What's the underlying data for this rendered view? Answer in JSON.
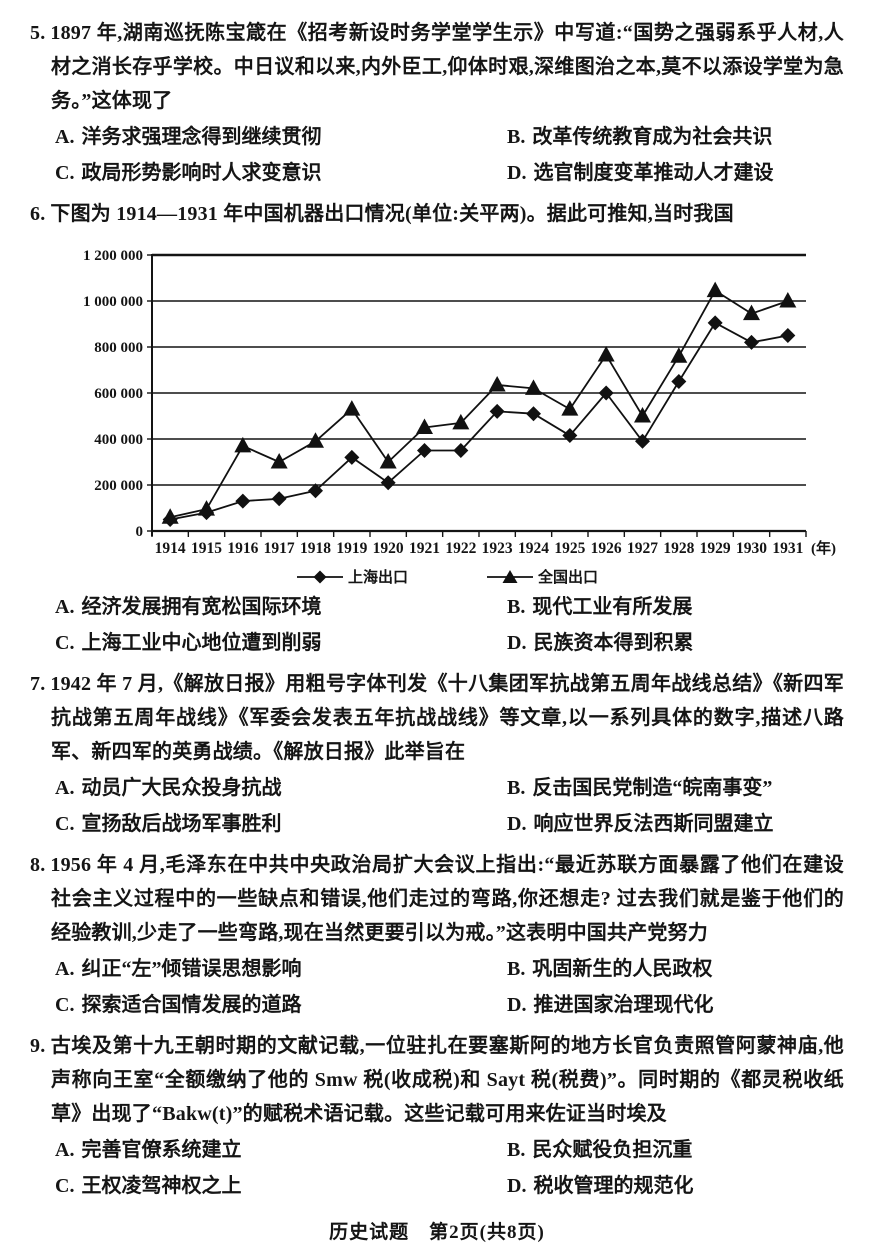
{
  "page": {
    "footer": "历史试题　第2页(共8页)"
  },
  "questions": [
    {
      "number": "5.",
      "stem": "1897 年,湖南巡抚陈宝箴在《招考新设时务学堂学生示》中写道:“国势之强弱系乎人材,人材之消长存乎学校。中日议和以来,内外臣工,仰体时艰,深维图治之本,莫不以添设学堂为急务。”这体现了",
      "options": [
        {
          "label": "A.",
          "text": "洋务求强理念得到继续贯彻"
        },
        {
          "label": "B.",
          "text": "改革传统教育成为社会共识"
        },
        {
          "label": "C.",
          "text": "政局形势影响时人求变意识"
        },
        {
          "label": "D.",
          "text": "选官制度变革推动人才建设"
        }
      ]
    },
    {
      "number": "6.",
      "stem": "下图为 1914—1931 年中国机器出口情况(单位:关平两)。据此可推知,当时我国",
      "has_chart": true,
      "options": [
        {
          "label": "A.",
          "text": "经济发展拥有宽松国际环境"
        },
        {
          "label": "B.",
          "text": "现代工业有所发展"
        },
        {
          "label": "C.",
          "text": "上海工业中心地位遭到削弱"
        },
        {
          "label": "D.",
          "text": "民族资本得到积累"
        }
      ]
    },
    {
      "number": "7.",
      "stem": "1942 年 7 月,《解放日报》用粗号字体刊发《十八集团军抗战第五周年战线总结》《新四军抗战第五周年战线》《军委会发表五年抗战战线》等文章,以一系列具体的数字,描述八路军、新四军的英勇战绩。《解放日报》此举旨在",
      "options": [
        {
          "label": "A.",
          "text": "动员广大民众投身抗战"
        },
        {
          "label": "B.",
          "text": "反击国民党制造“皖南事变”"
        },
        {
          "label": "C.",
          "text": "宣扬敌后战场军事胜利"
        },
        {
          "label": "D.",
          "text": "响应世界反法西斯同盟建立"
        }
      ]
    },
    {
      "number": "8.",
      "stem": "1956 年 4 月,毛泽东在中共中央政治局扩大会议上指出:“最近苏联方面暴露了他们在建设社会主义过程中的一些缺点和错误,他们走过的弯路,你还想走? 过去我们就是鉴于他们的经验教训,少走了一些弯路,现在当然更要引以为戒。”这表明中国共产党努力",
      "options": [
        {
          "label": "A.",
          "text": "纠正“左”倾错误思想影响"
        },
        {
          "label": "B.",
          "text": "巩固新生的人民政权"
        },
        {
          "label": "C.",
          "text": "探索适合国情发展的道路"
        },
        {
          "label": "D.",
          "text": "推进国家治理现代化"
        }
      ]
    },
    {
      "number": "9.",
      "stem": "古埃及第十九王朝时期的文献记载,一位驻扎在要塞斯阿的地方长官负责照管阿蒙神庙,他声称向王室“全额缴纳了他的 Smw 税(收成税)和 Sayt 税(税费)”。同时期的《都灵税收纸草》出现了“Bakw(t)”的赋税术语记载。这些记载可用来佐证当时埃及",
      "options": [
        {
          "label": "A.",
          "text": "完善官僚系统建立"
        },
        {
          "label": "B.",
          "text": "民众赋役负担沉重"
        },
        {
          "label": "C.",
          "text": "王权凌驾神权之上"
        },
        {
          "label": "D.",
          "text": "税收管理的规范化"
        }
      ]
    }
  ],
  "chart_data": {
    "type": "line",
    "title": "1914—1931 年中国机器出口情况(单位:关平两)",
    "x": [
      1914,
      1915,
      1916,
      1917,
      1918,
      1919,
      1920,
      1921,
      1922,
      1923,
      1924,
      1925,
      1926,
      1927,
      1928,
      1929,
      1930,
      1931
    ],
    "xlabel": "(年)",
    "ylabel": "",
    "ylim": [
      0,
      1200000
    ],
    "ytick_interval": 200000,
    "ytick_labels": [
      "0",
      "200 000",
      "400 000",
      "600 000",
      "800 000",
      "1 000 000",
      "1 200 000"
    ],
    "grid": "horizontal",
    "legend_position": "bottom",
    "series": [
      {
        "name": "上海出口",
        "marker": "diamond",
        "values": [
          50000,
          80000,
          130000,
          140000,
          175000,
          320000,
          210000,
          350000,
          350000,
          520000,
          510000,
          415000,
          600000,
          390000,
          650000,
          905000,
          820000,
          850000
        ]
      },
      {
        "name": "全国出口",
        "marker": "triangle",
        "values": [
          60000,
          95000,
          370000,
          300000,
          390000,
          530000,
          300000,
          450000,
          470000,
          635000,
          620000,
          530000,
          765000,
          500000,
          760000,
          1045000,
          945000,
          1000000
        ]
      }
    ]
  }
}
